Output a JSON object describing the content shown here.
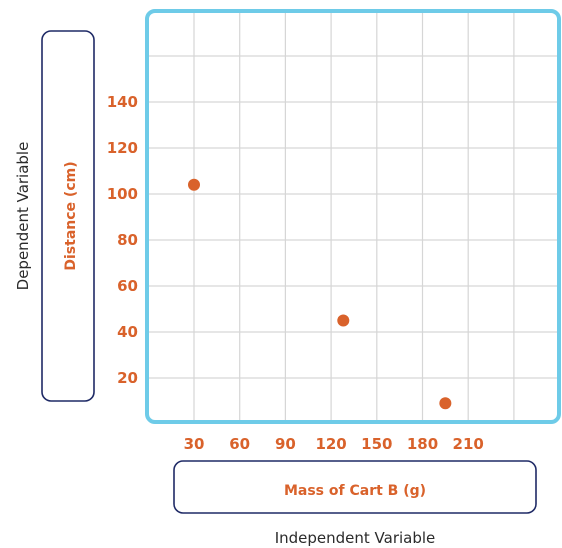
{
  "chart_data": {
    "type": "scatter",
    "xlabel": "Mass of Cart B (g)",
    "ylabel": "Distance (cm)",
    "x_variable_label": "Independent Variable",
    "y_variable_label": "Dependent Variable",
    "x_ticks": [
      30,
      60,
      90,
      120,
      150,
      180,
      210
    ],
    "y_ticks": [
      20,
      40,
      60,
      80,
      100,
      120,
      140
    ],
    "xlim": [
      0,
      270
    ],
    "ylim": [
      0,
      180
    ],
    "grid": true,
    "points": [
      {
        "x": 30,
        "y": 104
      },
      {
        "x": 128,
        "y": 45
      },
      {
        "x": 195,
        "y": 9
      }
    ],
    "colors": {
      "plot_border": "#6ecbe8",
      "grid": "#d6d6d6",
      "points": "#d9622b",
      "labels": "#d9622b",
      "boxes": "#1f2a66"
    }
  }
}
